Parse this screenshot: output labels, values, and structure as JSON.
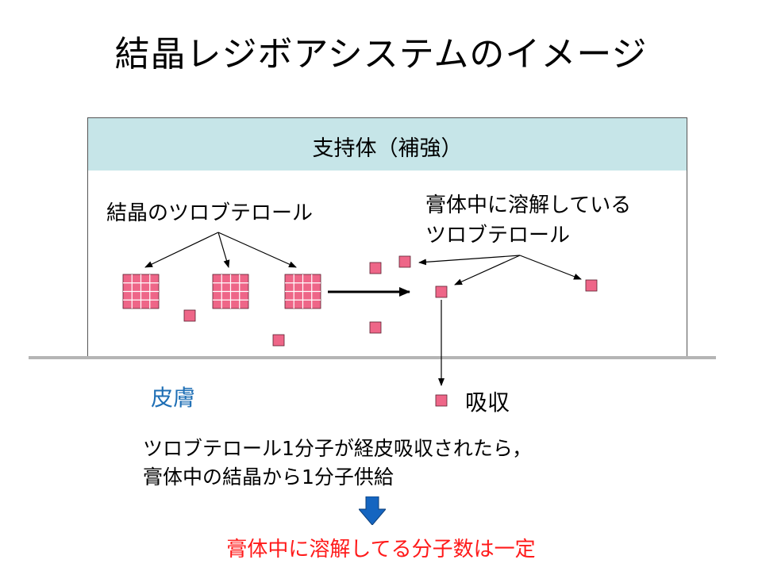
{
  "title": "結晶レジボアシステムのイメージ",
  "support_label": "支持体（補強）",
  "crystal_label": "結晶のツロブテロール",
  "dissolved_label": [
    "膏体中に溶解している",
    "ツロブテロール"
  ],
  "skin_label": "皮膚",
  "absorb_label": "吸収",
  "description": [
    "ツロブテロール1分子が経皮吸収されたら，",
    "膏体中の結晶から1分子供給"
  ],
  "conclusion": "膏体中に溶解してる分子数は一定",
  "colors": {
    "support_fill": "#c6e5e8",
    "molecule_fill": "#ee6688",
    "skin_text": "#1f6fb5",
    "conclusion_text": "#ff1a1a",
    "arrow_blue": "#1565c0"
  },
  "icons": {
    "crystal": "pink-grid-square-icon",
    "molecule": "pink-square-icon",
    "transition": "right-arrow-icon",
    "result": "down-arrow-icon"
  }
}
